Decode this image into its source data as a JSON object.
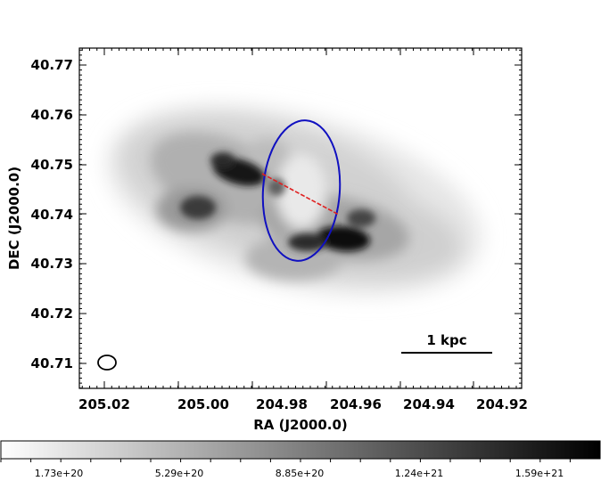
{
  "figure": {
    "xlabel": "RA (J2000.0)",
    "ylabel": "DEC (J2000.0)",
    "x_ticks": [
      "205.02",
      "205.00",
      "204.98",
      "204.96",
      "204.94",
      "204.92"
    ],
    "y_ticks": [
      "40.77",
      "40.76",
      "40.75",
      "40.74",
      "40.73",
      "40.72",
      "40.71"
    ],
    "scale_bar_label": "1 kpc",
    "colorbar_ticks": [
      "1.73e+20",
      "5.29e+20",
      "8.85e+20",
      "1.24e+21",
      "1.59e+21"
    ],
    "colormap": "grayscale (white = low, black = high)",
    "overlays": {
      "ellipse_color": "#1010c0",
      "major_axis_line_color": "#e02020",
      "beam_color": "#000000"
    }
  }
}
